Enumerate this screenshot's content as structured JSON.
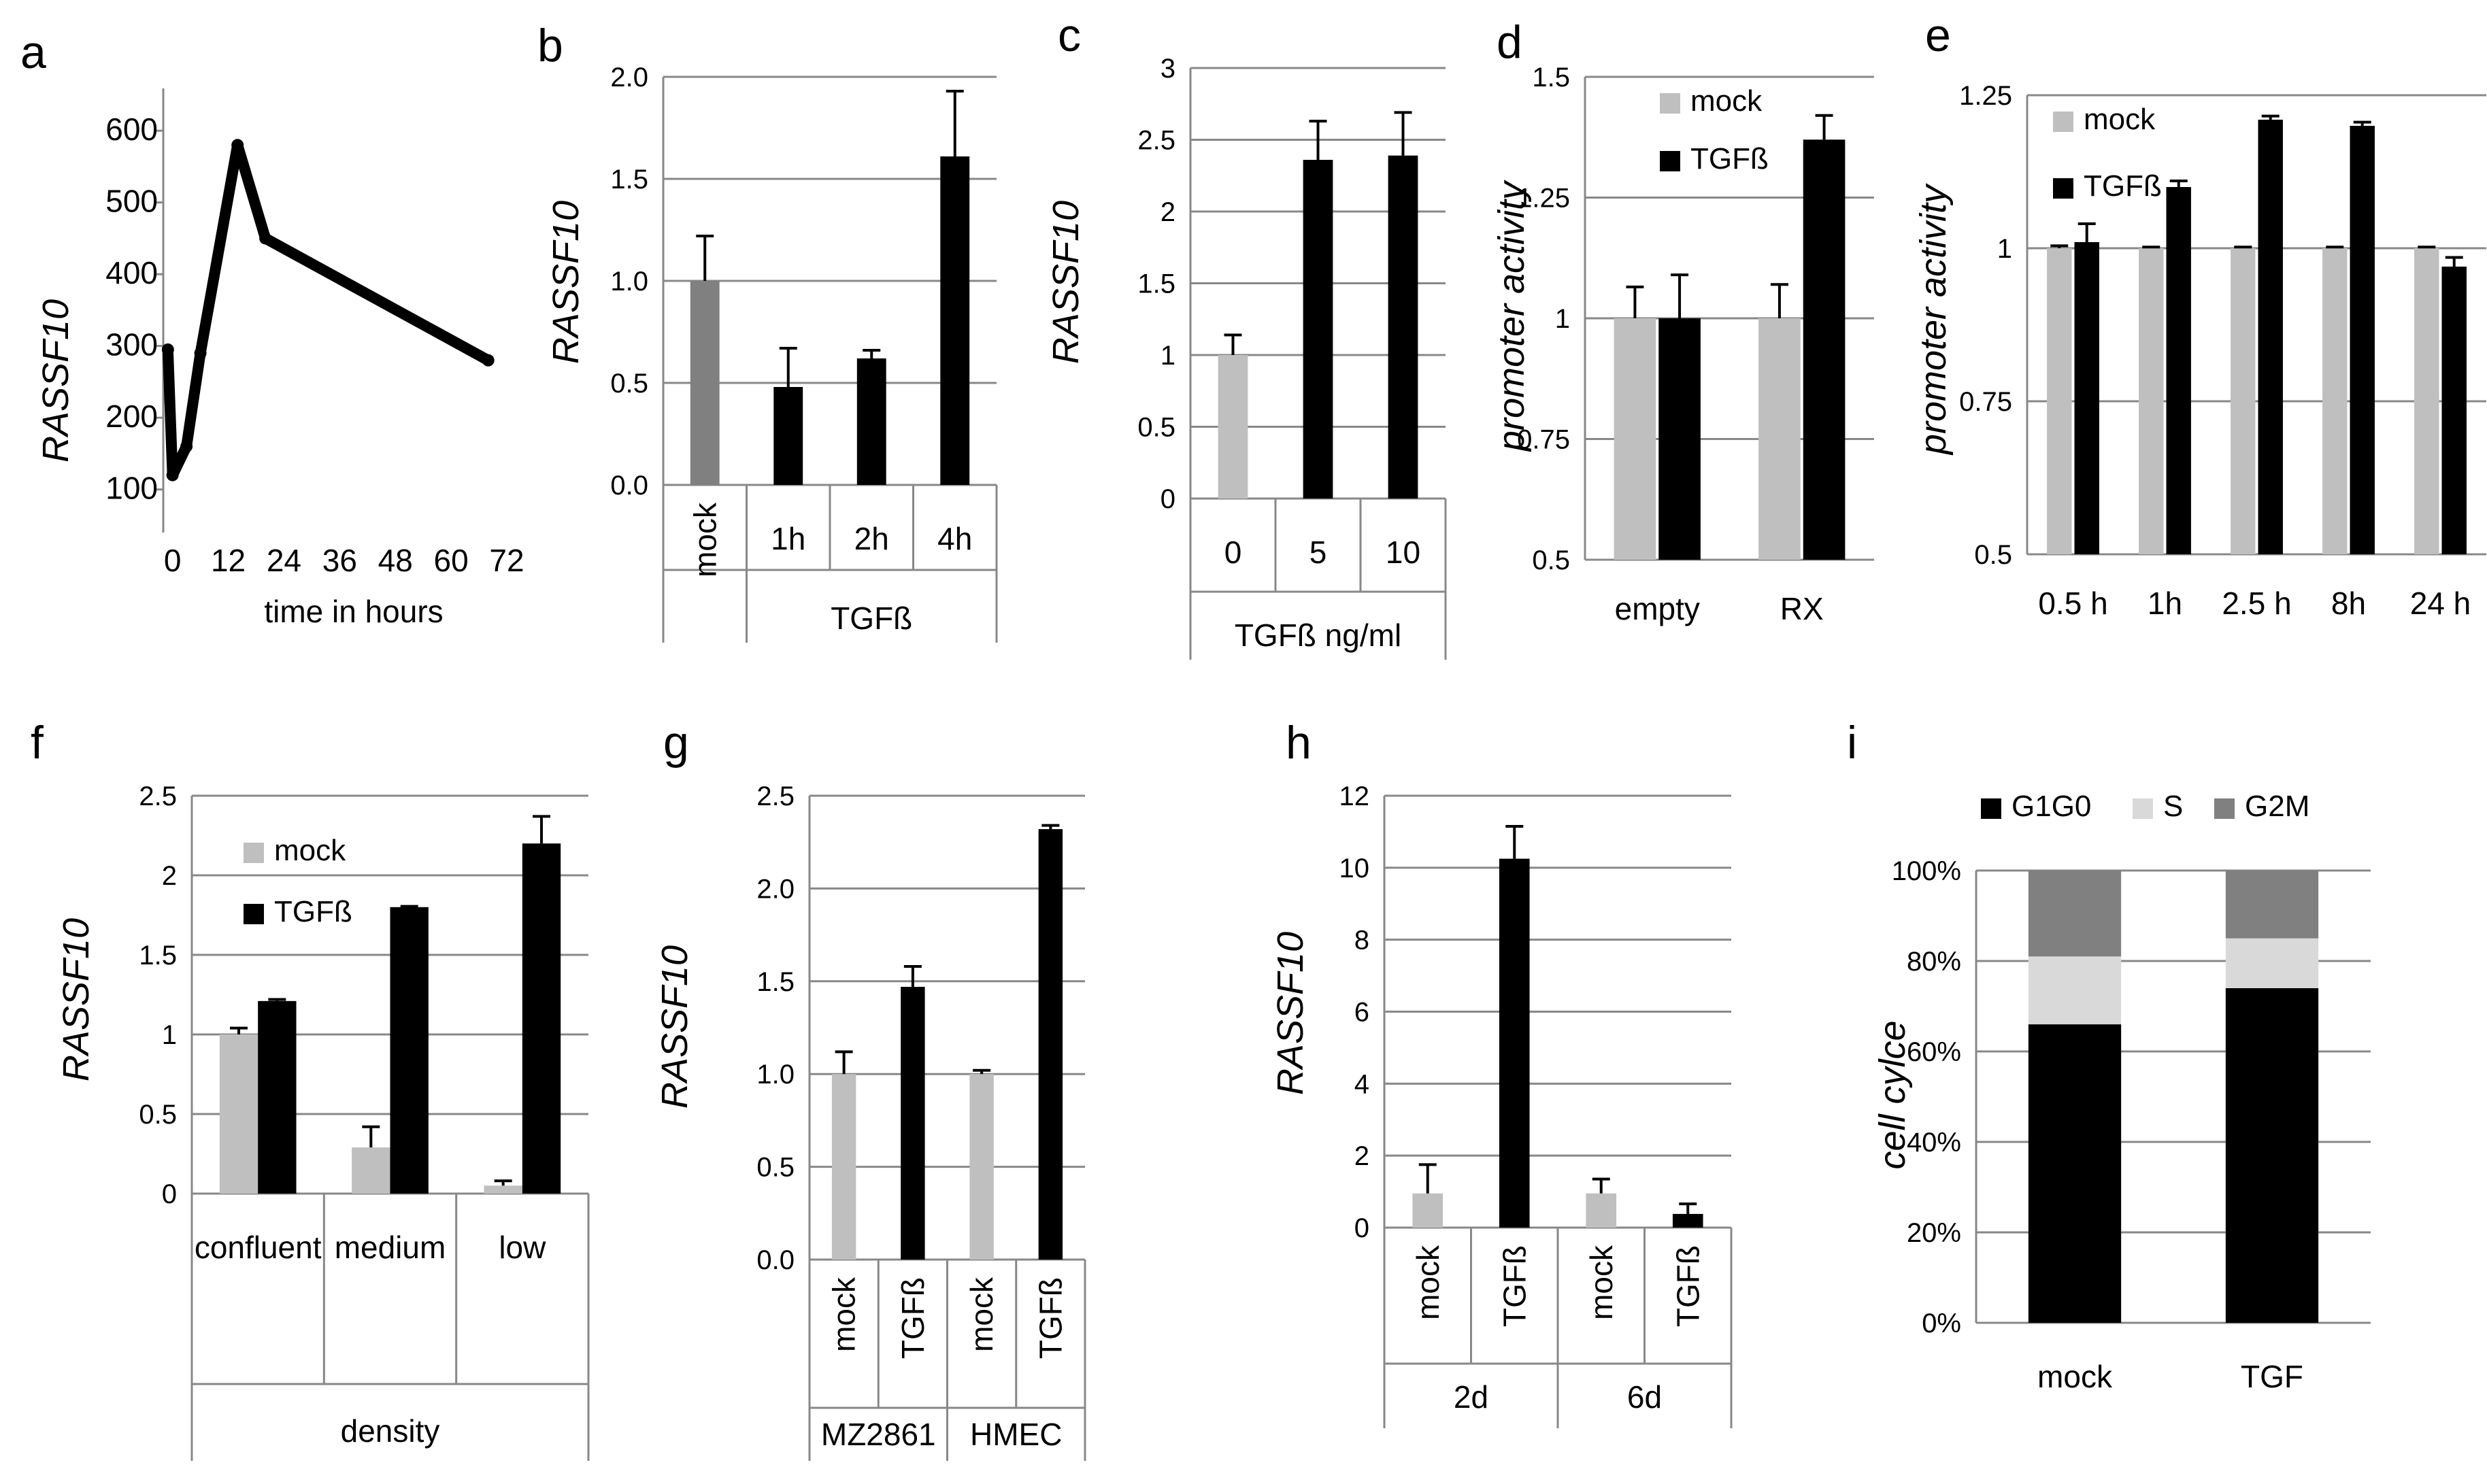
{
  "colors": {
    "mock": "#bfbfbf",
    "mock_dark": "#808080",
    "tgf": "#000000",
    "g2m": "#808080",
    "s": "#d9d9d9",
    "g1g0": "#000000"
  },
  "chart_data": [
    {
      "id": "a",
      "type": "line",
      "letter": "a",
      "ylabel": "RASSF10",
      "xlabel": "time in hours",
      "x": [
        -1,
        0,
        3,
        6,
        14,
        20,
        68
      ],
      "values": [
        295,
        120,
        160,
        290,
        580,
        450,
        280
      ],
      "xlim": [
        -2,
        72
      ],
      "ylim": [
        40,
        640
      ],
      "xticks": [
        0,
        12,
        24,
        36,
        48,
        60,
        72
      ],
      "yticks": [
        100,
        200,
        300,
        400,
        500,
        600
      ],
      "grid": false
    },
    {
      "id": "b",
      "type": "bar",
      "letter": "b",
      "ylabel": "RASSF10",
      "ylim": [
        0,
        2.0
      ],
      "yticks": [
        "0.0",
        "0.5",
        "1.0",
        "1.5",
        "2.0"
      ],
      "grid": true,
      "categories": [
        "mock",
        "1h",
        "2h",
        "4h"
      ],
      "rotated": [
        true,
        false,
        false,
        false
      ],
      "groups": [
        "TGFß"
      ],
      "values": [
        1.0,
        0.48,
        0.62,
        1.61
      ],
      "errors": [
        0.22,
        0.19,
        0.04,
        0.32
      ],
      "colors": [
        "mock_dark",
        "tgf",
        "tgf",
        "tgf"
      ]
    },
    {
      "id": "c",
      "type": "bar",
      "letter": "c",
      "ylabel": "RASSF10",
      "ylim": [
        0,
        3
      ],
      "yticks": [
        "0",
        "0.5",
        "1",
        "1.5",
        "2",
        "2.5",
        "3"
      ],
      "grid": true,
      "categories": [
        "0",
        "5",
        "10"
      ],
      "groups": [
        "TGFß ng/ml"
      ],
      "values": [
        1.0,
        2.36,
        2.39
      ],
      "errors": [
        0.14,
        0.27,
        0.3
      ],
      "colors": [
        "mock",
        "tgf",
        "tgf"
      ]
    },
    {
      "id": "d",
      "type": "bar",
      "letter": "d",
      "ylabel": "promoter activity",
      "ylim": [
        0.5,
        1.5
      ],
      "yticks": [
        "0.5",
        "0.75",
        "1",
        "1.25",
        "1.5"
      ],
      "grid": true,
      "categories": [
        "empty",
        "RX"
      ],
      "series": [
        {
          "name": "mock",
          "values": [
            1.0,
            1.0
          ],
          "errors": [
            0.065,
            0.07
          ]
        },
        {
          "name": "TGFß",
          "values": [
            1.0,
            1.37
          ],
          "errors": [
            0.09,
            0.05
          ]
        }
      ]
    },
    {
      "id": "e",
      "type": "bar",
      "letter": "e",
      "ylabel": "promoter activity",
      "ylim": [
        0.5,
        1.25
      ],
      "yticks": [
        "0.5",
        "0.75",
        "1",
        "1.25"
      ],
      "grid": true,
      "categories": [
        "0.5 h",
        "1h",
        "2.5 h",
        "8h",
        "24 h"
      ],
      "series": [
        {
          "name": "mock",
          "values": [
            1.0,
            1.0,
            1.0,
            1.0,
            1.0
          ],
          "errors": [
            0.004,
            0.002,
            0.002,
            0.002,
            0.002
          ]
        },
        {
          "name": "TGFß",
          "values": [
            1.01,
            1.1,
            1.21,
            1.2,
            0.97
          ],
          "errors": [
            0.03,
            0.01,
            0.006,
            0.006,
            0.015
          ]
        }
      ]
    },
    {
      "id": "f",
      "type": "bar",
      "letter": "f",
      "ylabel": "RASSF10",
      "ylim": [
        0,
        2.5
      ],
      "yticks": [
        "0",
        "0.5",
        "1",
        "1.5",
        "2",
        "2.5"
      ],
      "grid": true,
      "categories": [
        "confluent",
        "medium",
        "low"
      ],
      "groups": [
        "density"
      ],
      "series": [
        {
          "name": "mock",
          "values": [
            1.0,
            0.29,
            0.05
          ],
          "errors": [
            0.04,
            0.13,
            0.03
          ]
        },
        {
          "name": "TGFß",
          "values": [
            1.21,
            1.8,
            2.2
          ],
          "errors": [
            0.01,
            0.005,
            0.17
          ]
        }
      ]
    },
    {
      "id": "g",
      "type": "bar",
      "letter": "g",
      "ylabel": "RASSF10",
      "ylim": [
        0,
        2.5
      ],
      "yticks": [
        "0.0",
        "0.5",
        "1.0",
        "1.5",
        "2.0",
        "2.5"
      ],
      "grid": true,
      "categories": [
        "mock",
        "TGFß",
        "mock",
        "TGFß"
      ],
      "rotated": [
        true,
        true,
        true,
        true
      ],
      "groups": [
        "MZ2861",
        "HMEC"
      ],
      "values": [
        1.0,
        1.47,
        1.0,
        2.32
      ],
      "errors": [
        0.12,
        0.11,
        0.02,
        0.02
      ],
      "colors": [
        "mock",
        "tgf",
        "mock",
        "tgf"
      ]
    },
    {
      "id": "h",
      "type": "bar",
      "letter": "h",
      "ylabel": "RASSF10",
      "ylim": [
        0,
        12
      ],
      "yticks": [
        "0",
        "2",
        "4",
        "6",
        "8",
        "10",
        "12"
      ],
      "grid": true,
      "categories": [
        "mock",
        "TGFß",
        "mock",
        "TGFß"
      ],
      "rotated": [
        true,
        true,
        true,
        true
      ],
      "groups": [
        "2d",
        "6d"
      ],
      "values": [
        0.95,
        10.25,
        0.95,
        0.38
      ],
      "errors": [
        0.8,
        0.9,
        0.4,
        0.28
      ],
      "colors": [
        "mock",
        "tgf",
        "mock",
        "tgf"
      ]
    },
    {
      "id": "i",
      "type": "bar",
      "stacked": true,
      "letter": "i",
      "ylabel": "cell cylce",
      "ylim": [
        0,
        100
      ],
      "yticks": [
        "0%",
        "20%",
        "40%",
        "60%",
        "80%",
        "100%"
      ],
      "grid": true,
      "categories": [
        "mock",
        "TGF"
      ],
      "series": [
        {
          "name": "G1G0",
          "values": [
            66,
            74
          ]
        },
        {
          "name": "S",
          "values": [
            15,
            11
          ]
        },
        {
          "name": "G2M",
          "values": [
            19,
            15
          ]
        }
      ]
    }
  ]
}
